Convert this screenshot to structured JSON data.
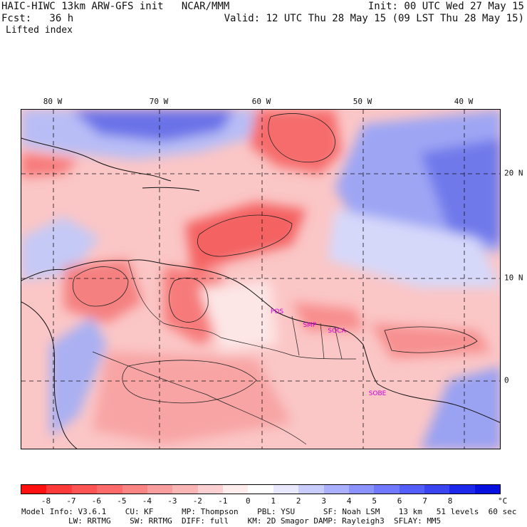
{
  "header": {
    "model_line": "HAIC-HIWC 13km ARW-GFS init   NCAR/MMM",
    "init": "Init: 00 UTC Wed 27 May 15",
    "fcst": "Fcst:   36 h",
    "valid": "Valid: 12 UTC Thu 28 May 15 (09 LST Thu 28 May 15)",
    "field": "Lifted index"
  },
  "axes": {
    "lon_labels": [
      "80 W",
      "70 W",
      "60 W",
      "50 W",
      "40 W"
    ],
    "lat_labels": [
      "20 N",
      "10 N",
      "0"
    ]
  },
  "stations": [
    "POS",
    "SMP",
    "SOCA",
    "SOBE"
  ],
  "colorbar": {
    "colors": [
      "#ff1010",
      "#ff3a3a",
      "#ff5454",
      "#ff6b6b",
      "#fb8585",
      "#f89e9e",
      "#fab5b5",
      "#fcd0d0",
      "#ffecec",
      "#ffffff",
      "#e8e8ff",
      "#c9ccff",
      "#aab0ff",
      "#8c93ff",
      "#7079ff",
      "#545ef8",
      "#3a44f0",
      "#1e28ea",
      "#0810e0"
    ],
    "ticks": [
      "-8",
      "-7",
      "-6",
      "-5",
      "-4",
      "-3",
      "-2",
      "-1",
      "0",
      "1",
      "2",
      "3",
      "4",
      "5",
      "6",
      "7",
      "8"
    ],
    "unit": "°C"
  },
  "footer": {
    "line1": "Model Info: V3.6.1    CU: KF      MP: Thompson    PBL: YSU      SF: Noah LSM    13 km   51 levels  60 sec",
    "line2": "LW: RRTMG    SW: RRTMG  DIFF: full    KM: 2D Smagor DAMP: Rayleigh3  SFLAY: MM5"
  }
}
